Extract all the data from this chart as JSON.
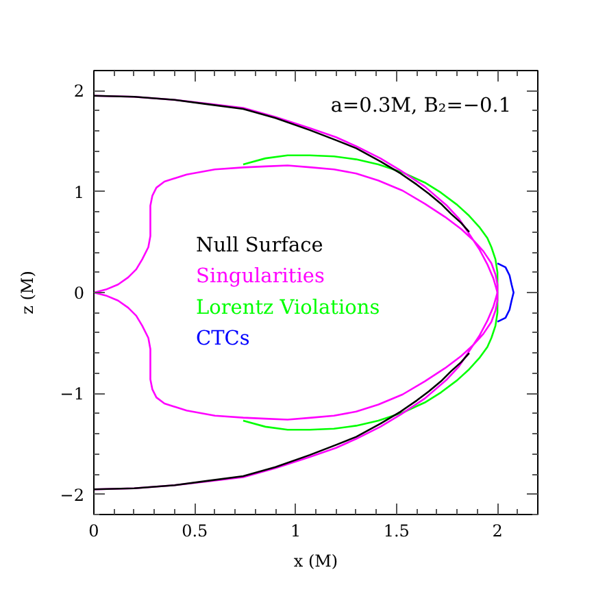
{
  "chart_data": {
    "type": "line",
    "xlabel": "x (M)",
    "ylabel": "z (M)",
    "annotations": [
      "a=0.3M, B₂=−0.1"
    ],
    "xlim": [
      0,
      2.2
    ],
    "ylim": [
      -2.2,
      2.2
    ],
    "xticks": [
      0,
      {
        "value": 0.1,
        "label": null
      },
      {
        "value": 0.2,
        "label": null
      },
      {
        "value": 0.3,
        "label": null
      },
      {
        "value": 0.4,
        "label": null
      },
      0.5,
      {
        "value": 0.6,
        "label": null
      },
      {
        "value": 0.7,
        "label": null
      },
      {
        "value": 0.8,
        "label": null
      },
      {
        "value": 0.9,
        "label": null
      },
      1,
      {
        "value": 1.1,
        "label": null
      },
      {
        "value": 1.2,
        "label": null
      },
      {
        "value": 1.3,
        "label": null
      },
      {
        "value": 1.4,
        "label": null
      },
      1.5,
      {
        "value": 1.6,
        "label": null
      },
      {
        "value": 1.7,
        "label": null
      },
      {
        "value": 1.8,
        "label": null
      },
      {
        "value": 1.9,
        "label": null
      },
      2,
      {
        "value": 2.1,
        "label": null
      }
    ],
    "yticks": [
      {
        "value": -2.2,
        "label": null
      },
      -2,
      {
        "value": -1.8,
        "label": null
      },
      {
        "value": -1.6,
        "label": null
      },
      {
        "value": -1.4,
        "label": null
      },
      {
        "value": -1.2,
        "label": null
      },
      -1,
      {
        "value": -0.8,
        "label": null
      },
      {
        "value": -0.6,
        "label": null
      },
      {
        "value": -0.4,
        "label": null
      },
      {
        "value": -0.2,
        "label": null
      },
      0,
      {
        "value": 0.2,
        "label": null
      },
      {
        "value": 0.4,
        "label": null
      },
      {
        "value": 0.6,
        "label": null
      },
      {
        "value": 0.8,
        "label": null
      },
      1,
      {
        "value": 1.2,
        "label": null
      },
      {
        "value": 1.4,
        "label": null
      },
      {
        "value": 1.6,
        "label": null
      },
      {
        "value": 1.8,
        "label": null
      },
      2
    ],
    "legend": "left",
    "series": [
      {
        "name": "Null Surface",
        "color": "#000000",
        "x": [
          0,
          0.2,
          0.4,
          0.55,
          0.74,
          0.9,
          1.07,
          1.2,
          1.3,
          1.42,
          1.52,
          1.6,
          1.66,
          1.72,
          1.77,
          1.82,
          1.86
        ],
        "values": [
          1.95,
          1.94,
          1.91,
          1.87,
          1.82,
          1.73,
          1.61,
          1.51,
          1.43,
          1.3,
          1.18,
          1.07,
          0.98,
          0.88,
          0.78,
          0.69,
          0.6
        ]
      },
      {
        "color": "#000000",
        "x": [
          1.86,
          1.82,
          1.77,
          1.72,
          1.66,
          1.6,
          1.52,
          1.42,
          1.3,
          1.2,
          1.07,
          0.9,
          0.74,
          0.55,
          0.4,
          0.2,
          0
        ],
        "values": [
          -0.6,
          -0.69,
          -0.78,
          -0.88,
          -0.98,
          -1.07,
          -1.18,
          -1.3,
          -1.43,
          -1.51,
          -1.61,
          -1.73,
          -1.82,
          -1.87,
          -1.91,
          -1.94,
          -1.95
        ]
      },
      {
        "name": "Singularities",
        "color": "#ff00ff",
        "x": [
          0,
          0.2,
          0.4,
          0.57,
          0.74,
          0.9,
          1.07,
          1.2,
          1.3,
          1.42,
          1.52,
          1.64,
          1.75,
          1.81,
          1.86,
          1.91,
          1.95,
          1.98,
          2.0,
          2.0,
          1.99,
          1.97,
          1.93,
          1.88,
          1.82,
          1.74,
          1.64,
          1.53,
          1.41,
          1.3,
          1.19,
          1.08,
          0.96,
          0.85,
          0.74,
          0.6,
          0.46,
          0.35,
          0.31,
          0.29,
          0.28,
          0.28,
          0.28,
          0.27,
          0.24,
          0.21,
          0.17,
          0.12,
          0.06,
          0
        ],
        "values": [
          1.95,
          1.94,
          1.91,
          1.87,
          1.83,
          1.74,
          1.63,
          1.54,
          1.45,
          1.33,
          1.21,
          1.05,
          0.86,
          0.73,
          0.58,
          0.43,
          0.28,
          0.14,
          0,
          0.08,
          0.18,
          0.29,
          0.41,
          0.52,
          0.63,
          0.75,
          0.88,
          1.01,
          1.11,
          1.18,
          1.22,
          1.24,
          1.26,
          1.25,
          1.24,
          1.22,
          1.17,
          1.1,
          1.04,
          0.96,
          0.86,
          0.7,
          0.56,
          0.45,
          0.33,
          0.23,
          0.15,
          0.08,
          0.03,
          0
        ]
      },
      {
        "color": "#ff00ff",
        "x": [
          0,
          0.2,
          0.4,
          0.57,
          0.74,
          0.9,
          1.07,
          1.2,
          1.3,
          1.42,
          1.52,
          1.64,
          1.75,
          1.81,
          1.86,
          1.91,
          1.95,
          1.98,
          2.0,
          2.0,
          1.99,
          1.97,
          1.93,
          1.88,
          1.82,
          1.74,
          1.64,
          1.53,
          1.41,
          1.3,
          1.19,
          1.08,
          0.96,
          0.85,
          0.74,
          0.6,
          0.46,
          0.35,
          0.31,
          0.29,
          0.28,
          0.28,
          0.28,
          0.27,
          0.24,
          0.21,
          0.17,
          0.12,
          0.06,
          0
        ],
        "values": [
          -1.95,
          -1.94,
          -1.91,
          -1.87,
          -1.83,
          -1.74,
          -1.63,
          -1.54,
          -1.45,
          -1.33,
          -1.21,
          -1.05,
          -0.86,
          -0.73,
          -0.58,
          -0.43,
          -0.28,
          -0.14,
          0,
          -0.08,
          -0.18,
          -0.29,
          -0.41,
          -0.52,
          -0.63,
          -0.75,
          -0.88,
          -1.01,
          -1.11,
          -1.18,
          -1.22,
          -1.24,
          -1.26,
          -1.25,
          -1.24,
          -1.22,
          -1.17,
          -1.1,
          -1.04,
          -0.96,
          -0.86,
          -0.7,
          -0.56,
          -0.45,
          -0.33,
          -0.23,
          -0.15,
          -0.08,
          -0.03,
          0
        ]
      },
      {
        "name": "Lorentz Violations",
        "color": "#00ff00",
        "x": [
          0.74,
          0.85,
          0.96,
          1.07,
          1.19,
          1.3,
          1.41,
          1.53,
          1.64,
          1.72,
          1.8,
          1.86,
          1.91,
          1.95,
          1.97,
          1.99,
          2.0,
          2.0,
          2.0,
          1.99,
          1.97,
          1.95,
          1.91,
          1.86,
          1.8,
          1.72,
          1.64,
          1.53,
          1.41,
          1.3,
          1.19,
          1.07,
          0.96,
          0.85,
          0.74
        ],
        "values": [
          1.27,
          1.33,
          1.36,
          1.36,
          1.35,
          1.32,
          1.27,
          1.19,
          1.09,
          0.99,
          0.87,
          0.76,
          0.65,
          0.54,
          0.45,
          0.33,
          0.2,
          0,
          -0.2,
          -0.33,
          -0.45,
          -0.54,
          -0.65,
          -0.76,
          -0.87,
          -0.99,
          -1.09,
          -1.19,
          -1.27,
          -1.32,
          -1.35,
          -1.36,
          -1.36,
          -1.33,
          -1.27
        ]
      },
      {
        "name": "CTCs",
        "color": "#0000ff",
        "x": [
          2.0,
          2.04,
          2.06,
          2.07,
          2.08,
          2.07,
          2.06,
          2.04,
          2.0
        ],
        "values": [
          0.29,
          0.25,
          0.17,
          0.08,
          0,
          -0.08,
          -0.17,
          -0.25,
          -0.29
        ]
      }
    ]
  }
}
